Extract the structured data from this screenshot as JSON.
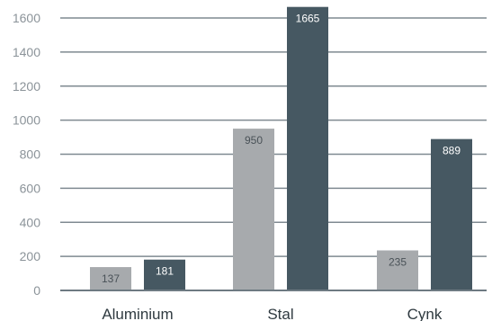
{
  "chart_data": {
    "type": "bar",
    "title": "",
    "xlabel": "",
    "ylabel": "",
    "categories": [
      "Aluminium",
      "Stal",
      "Cynk"
    ],
    "series": [
      {
        "values": [
          137,
          950,
          235
        ],
        "color": "#a7aaad",
        "label_color": "#4a5258"
      },
      {
        "values": [
          181,
          1665,
          889
        ],
        "color": "#465862",
        "label_color": "#ffffff"
      }
    ],
    "ylim": [
      0,
      1665
    ],
    "yticks": [
      0,
      200,
      400,
      600,
      800,
      1000,
      1200,
      1400,
      1600
    ],
    "grid": true,
    "legend": "none"
  }
}
